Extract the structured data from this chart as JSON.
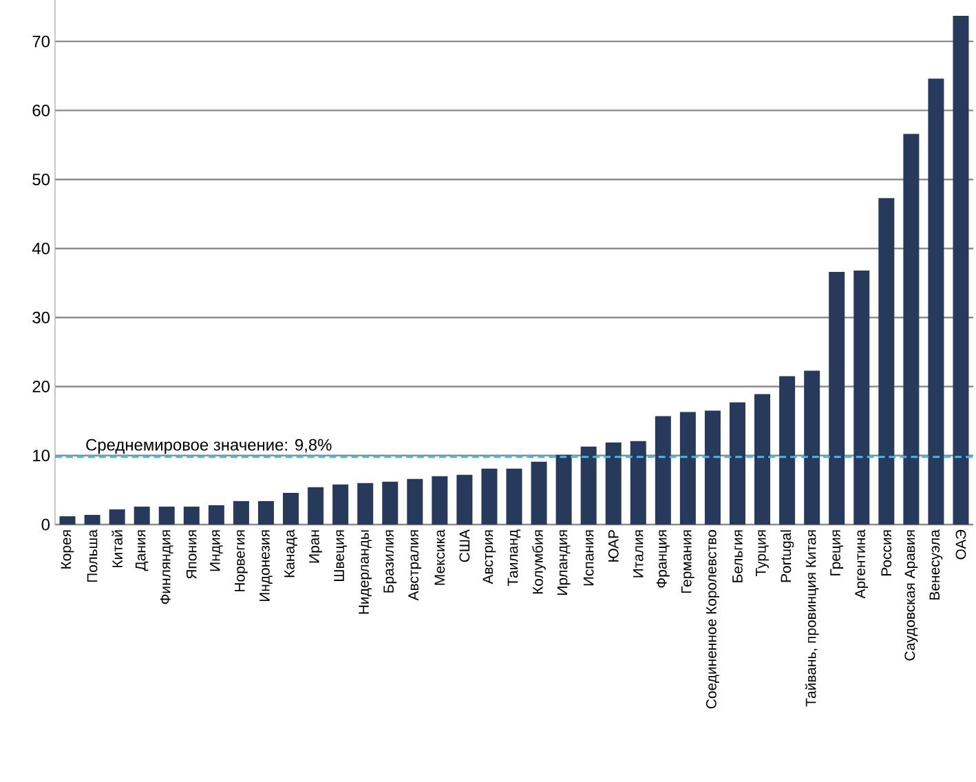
{
  "chart_data": {
    "type": "bar",
    "categories": [
      "Корея",
      "Польша",
      "Китай",
      "Дания",
      "Финляндия",
      "Япония",
      "Индия",
      "Норвегия",
      "Индонезия",
      "Канада",
      "Иран",
      "Швеция",
      "Нидерланды",
      "Бразилия",
      "Австралия",
      "Мексика",
      "США",
      "Австрия",
      "Таиланд",
      "Колумбия",
      "Ирландия",
      "Испания",
      "ЮАР",
      "Италия",
      "Франция",
      "Германия",
      "Соединенное Королевство",
      "Бельгия",
      "Турция",
      "Portugal",
      "Тайвань, провинция Китая",
      "Греция",
      "Аргентина",
      "Россия",
      "Саудовская Аравия",
      "Венесуэла",
      "ОАЭ"
    ],
    "values": [
      1.2,
      1.4,
      2.2,
      2.6,
      2.6,
      2.6,
      2.8,
      3.4,
      3.4,
      4.6,
      5.4,
      5.8,
      6.0,
      6.2,
      6.6,
      7.0,
      7.2,
      8.1,
      8.1,
      9.1,
      10.1,
      11.3,
      11.9,
      12.1,
      15.7,
      16.3,
      16.5,
      17.7,
      18.9,
      21.5,
      22.3,
      36.6,
      36.8,
      47.3,
      56.6,
      64.6,
      73.7
    ],
    "color": "#283a5c",
    "ylim": [
      0,
      76
    ],
    "yticks": [
      0,
      10,
      20,
      30,
      40,
      50,
      60,
      70
    ],
    "grid": "y",
    "ref_lines": [
      {
        "axis": "y",
        "value": 9.8,
        "label": "Среднемировое значение: 9,8%",
        "color": "#3bbfe8",
        "line_style": "dashed"
      }
    ]
  }
}
